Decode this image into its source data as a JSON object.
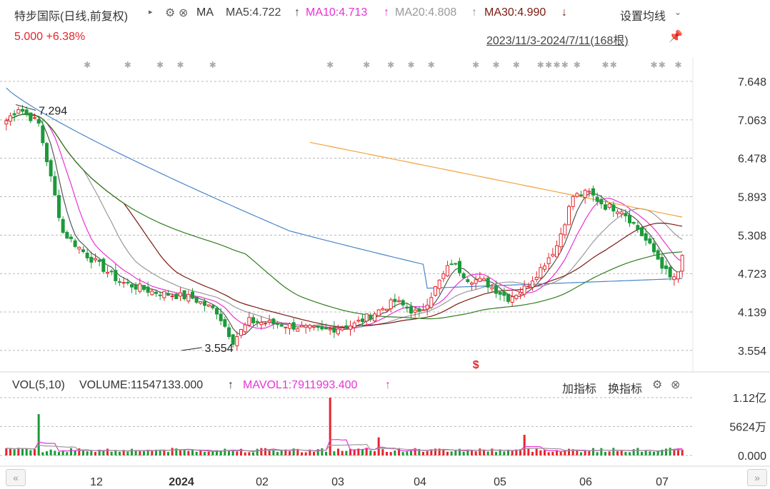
{
  "header": {
    "title": "特步国际(日线,前复权)",
    "indicator_label": "MA",
    "ma5": "MA5:4.722",
    "ma10": "MA10:4.713",
    "ma20": "MA20:4.808",
    "ma30": "MA30:4.990",
    "settings_label": "设置均线",
    "price_line": "5.000  +6.38%",
    "range_label": "2023/11/3-2024/7/11(168根)"
  },
  "volume_header": {
    "vol_label": "VOL(5,10)",
    "volume_value": "VOLUME:11547133.000",
    "mavol1": "MAVOL1:7911993.400",
    "add_indicator": "加指标",
    "switch_indicator": "换指标"
  },
  "colors": {
    "up": "#e6262b",
    "down": "#1c9a3a",
    "ma5": "#555555",
    "ma10": "#e832d6",
    "ma20": "#9a9a9a",
    "ma30": "#7b1a12",
    "ma60": "#2f7d1f",
    "ma120": "#4a86c8",
    "ma250": "#f2a23c"
  },
  "chart_data": {
    "type": "candlestick",
    "title": "特步国际(日线,前复权)",
    "price_axis_ticks": [
      "7.648",
      "7.063",
      "6.478",
      "5.893",
      "5.308",
      "4.723",
      "4.139",
      "3.554"
    ],
    "price_ylim": [
      3.4,
      7.8
    ],
    "volume_axis_ticks": [
      "1.12亿",
      "5624万",
      "0.000"
    ],
    "x_tick_labels": [
      "12",
      "2024",
      "02",
      "03",
      "04",
      "05",
      "06",
      "07"
    ],
    "annotations": [
      {
        "text": "7.294",
        "value": 7.294
      },
      {
        "text": "3.554",
        "value": 3.554
      }
    ],
    "series": [
      {
        "name": "MA5",
        "value": 4.722
      },
      {
        "name": "MA10",
        "value": 4.713
      },
      {
        "name": "MA20",
        "value": 4.808
      },
      {
        "name": "MA30",
        "value": 4.99
      }
    ],
    "last_close": 5.0,
    "change_pct": 6.38,
    "volume": 11547133.0,
    "mavol1": 7911993.4,
    "bars": 168
  }
}
